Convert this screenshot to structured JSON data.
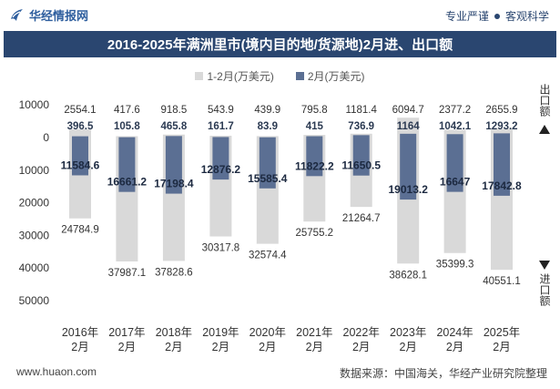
{
  "header": {
    "logo_icon": "huajing-logo-icon",
    "logo_text": "华经情报网",
    "slogan_1": "专业严谨",
    "separator_icon": "dot-icon",
    "slogan_2": "客观科学"
  },
  "colors": {
    "title_bar": "#2a4670",
    "brand_blue": "#2e5e9e",
    "total_bar": "#d9d9d9",
    "month_bar": "#5b6f93"
  },
  "chart_data": {
    "type": "bar",
    "title": "2016-2025年满洲里市(境内目的地/货源地)2月进、出口额",
    "xlabel": "",
    "ylabel": "",
    "ylabel_export": "出口额",
    "ylabel_import": "进口额",
    "export_arrow_icon": "triangle-up-icon",
    "import_arrow_icon": "triangle-down-icon",
    "legend_position": "top",
    "grid": false,
    "y_export_max": 10000,
    "y_import_max": 50000,
    "y_tick_step": 10000,
    "categories": [
      "2016年2月",
      "2017年2月",
      "2018年2月",
      "2019年2月",
      "2020年2月",
      "2021年2月",
      "2022年2月",
      "2023年2月",
      "2024年2月",
      "2025年2月"
    ],
    "series": [
      {
        "name": "1-2月(万美元)",
        "color": "#d9d9d9",
        "export": [
          2554.1,
          417.6,
          918.5,
          543.9,
          439.9,
          795.8,
          1181.4,
          6094.7,
          2377.2,
          2655.9
        ],
        "import": [
          24784.9,
          37987.1,
          37828.6,
          30317.8,
          32574.4,
          25755.2,
          21264.7,
          38628.1,
          35399.3,
          40551.1
        ]
      },
      {
        "name": "2月(万美元)",
        "color": "#5b6f93",
        "export": [
          396.5,
          105.8,
          465.8,
          161.7,
          83.9,
          415,
          736.9,
          1164,
          1042.1,
          1293.2
        ],
        "import": [
          11584.6,
          16661.2,
          17198.4,
          12876.2,
          15585.4,
          11822.2,
          11650.5,
          19013.2,
          16647,
          17842.8
        ]
      }
    ]
  },
  "footer": {
    "website": "www.huaon.com",
    "source": "数据来源：中国海关，华经产业研究院整理"
  }
}
